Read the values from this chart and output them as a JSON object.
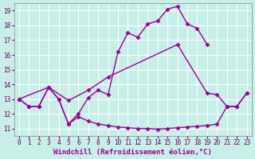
{
  "xlabel": "Windchill (Refroidissement éolien,°C)",
  "bg_color": "#c8eee8",
  "line_color": "#990099",
  "grid_color": "#ffffff",
  "xlim": [
    -0.5,
    23.5
  ],
  "ylim": [
    10.5,
    19.5
  ],
  "xticks": [
    0,
    1,
    2,
    3,
    4,
    5,
    6,
    7,
    8,
    9,
    10,
    11,
    12,
    13,
    14,
    15,
    16,
    17,
    18,
    19,
    20,
    21,
    22,
    23
  ],
  "yticks": [
    11,
    12,
    13,
    14,
    15,
    16,
    17,
    18,
    19
  ],
  "line1_x": [
    0,
    1,
    2,
    3,
    4,
    5,
    6,
    7,
    8,
    9,
    10,
    11,
    12,
    13,
    14,
    15,
    16,
    17,
    18,
    19
  ],
  "line1_y": [
    13.0,
    12.5,
    12.5,
    13.8,
    13.0,
    11.3,
    12.0,
    13.1,
    13.6,
    13.3,
    16.2,
    17.5,
    17.2,
    18.1,
    18.3,
    19.1,
    19.3,
    18.1,
    17.8,
    16.7
  ],
  "line2_x": [
    0,
    3,
    5,
    7,
    9,
    16,
    19,
    20,
    21,
    22,
    23
  ],
  "line2_y": [
    13.0,
    13.8,
    12.9,
    13.6,
    14.5,
    16.7,
    13.4,
    13.3,
    12.5,
    12.5,
    13.4
  ],
  "line3_x": [
    0,
    1,
    2,
    3,
    4,
    5,
    6,
    7,
    8,
    9,
    10,
    11,
    12,
    13,
    14,
    15,
    16,
    17,
    18,
    19,
    20,
    21,
    22,
    23
  ],
  "line3_y": [
    13.0,
    12.5,
    12.5,
    13.8,
    13.0,
    11.3,
    11.8,
    11.5,
    11.3,
    11.2,
    11.1,
    11.05,
    11.0,
    11.0,
    10.95,
    11.0,
    11.05,
    11.1,
    11.15,
    11.2,
    11.3,
    12.5,
    12.5,
    13.4
  ],
  "marker": "D",
  "markersize": 2.5,
  "linewidth": 1.0,
  "xlabel_fontsize": 6.5,
  "tick_fontsize": 5.5
}
